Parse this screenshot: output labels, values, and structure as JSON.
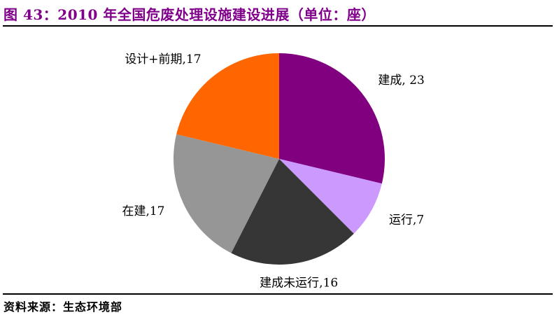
{
  "figure": {
    "title": "图 43：2010 年全国危废处理设施建设进展（单位：座）",
    "source_label": "资料来源：生态环境部"
  },
  "chart_data": {
    "type": "pie",
    "title": "2010 年全国危废处理设施建设进展",
    "unit": "座",
    "start_angle_deg": 0,
    "direction": "clockwise",
    "legend": "none",
    "label_style": "category-and-value-outside",
    "slices": [
      {
        "id": "built",
        "label": "建成",
        "value": 23,
        "display": "建成, 23",
        "color": "#800080"
      },
      {
        "id": "running",
        "label": "运行",
        "value": 7,
        "display": "运行,7",
        "color": "#CC99FF"
      },
      {
        "id": "built-not-running",
        "label": "建成未运行",
        "value": 16,
        "display": "建成未运行,16",
        "color": "#363636"
      },
      {
        "id": "under-construction",
        "label": "在建",
        "value": 17,
        "display": "在建,17",
        "color": "#969696"
      },
      {
        "id": "design-preliminary",
        "label": "设计+前期",
        "value": 17,
        "display": "设计+前期,17",
        "color": "#FF6600"
      }
    ]
  },
  "colors": {
    "title_text": "#80008B",
    "rule": "#000000",
    "background": "#FFFFFF",
    "label_text": "#000000"
  }
}
